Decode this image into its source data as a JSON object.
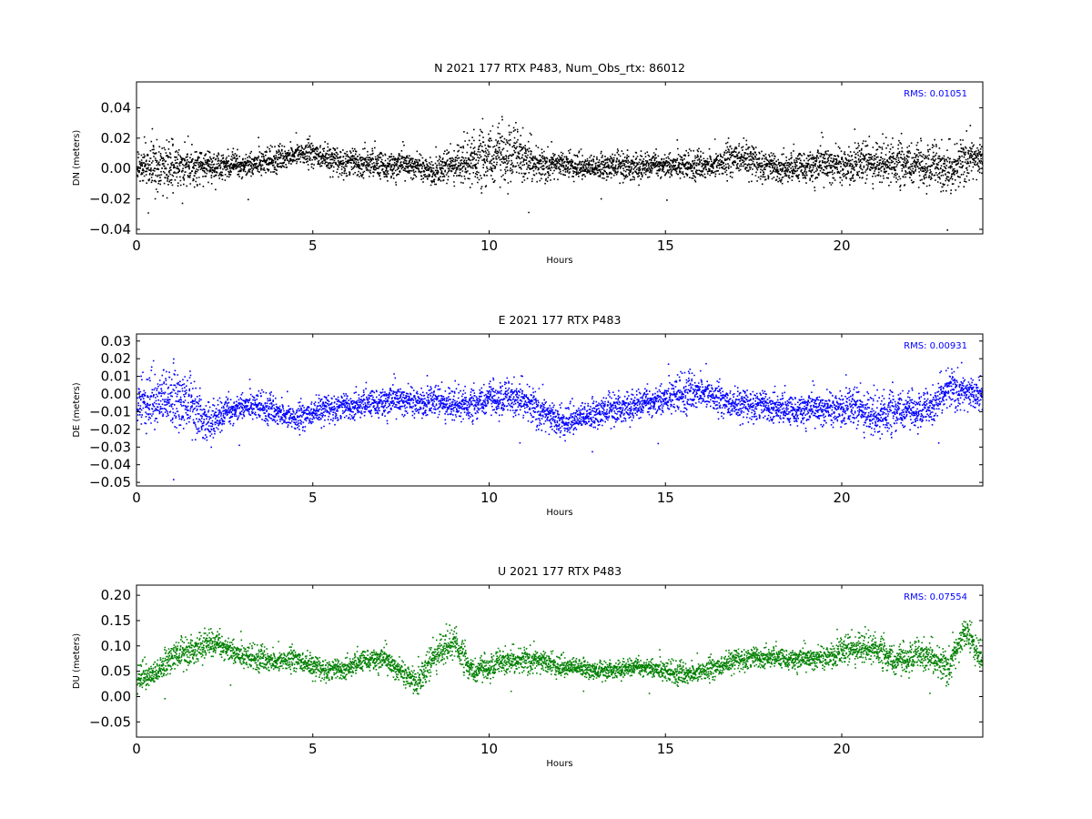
{
  "chart_data": [
    {
      "type": "scatter",
      "title": "N 2021 177 RTX  P483, Num_Obs_rtx: 86012",
      "xlabel": "Hours",
      "ylabel": "DN (meters)",
      "xlim": [
        0,
        24
      ],
      "ylim": [
        -0.043,
        0.057
      ],
      "xticks": [
        0,
        5,
        10,
        15,
        20
      ],
      "xtick_labels": [
        "0",
        "5",
        "10",
        "15",
        "20"
      ],
      "yticks": [
        -0.04,
        -0.02,
        0.0,
        0.02,
        0.04
      ],
      "ytick_labels": [
        "−0.04",
        "−0.02",
        "0.00",
        "0.02",
        "0.04"
      ],
      "annotation": "RMS:  0.01051",
      "color": "#000000",
      "annotation_color": "#0000ff",
      "grid": false,
      "series": [
        {
          "x": [
            0,
            0.5,
            1,
            1.5,
            2,
            2.5,
            3,
            3.5,
            4,
            4.5,
            5,
            5.5,
            6,
            6.5,
            7,
            7.5,
            8,
            8.5,
            9,
            9.5,
            10,
            10.5,
            11,
            11.5,
            12,
            12.5,
            13,
            13.5,
            14,
            14.5,
            15,
            15.5,
            16,
            16.5,
            17,
            17.5,
            18,
            18.5,
            19,
            19.5,
            20,
            20.5,
            21,
            21.5,
            22,
            22.5,
            23,
            23.5,
            24
          ],
          "y": [
            0.002,
            0.002,
            0.0,
            0.003,
            0.002,
            0.001,
            0.003,
            0.004,
            0.006,
            0.01,
            0.01,
            0.006,
            0.005,
            0.005,
            0.002,
            0.003,
            0.002,
            -0.002,
            0.004,
            0.006,
            0.008,
            0.01,
            0.006,
            0.003,
            0.003,
            0.002,
            0.001,
            0.002,
            0.002,
            0.003,
            0.003,
            0.002,
            0.002,
            0.003,
            0.008,
            0.005,
            0.002,
            0.001,
            0.002,
            0.003,
            0.003,
            0.004,
            0.005,
            0.004,
            0.003,
            0.002,
            -0.002,
            0.008,
            0.005
          ],
          "spread": [
            0.012,
            0.016,
            0.018,
            0.012,
            0.011,
            0.01,
            0.009,
            0.009,
            0.008,
            0.008,
            0.009,
            0.009,
            0.01,
            0.01,
            0.01,
            0.009,
            0.009,
            0.01,
            0.012,
            0.018,
            0.02,
            0.02,
            0.016,
            0.011,
            0.01,
            0.009,
            0.009,
            0.009,
            0.01,
            0.009,
            0.009,
            0.009,
            0.009,
            0.01,
            0.012,
            0.011,
            0.01,
            0.01,
            0.011,
            0.013,
            0.013,
            0.014,
            0.014,
            0.015,
            0.014,
            0.014,
            0.017,
            0.016,
            0.012
          ]
        }
      ]
    },
    {
      "type": "scatter",
      "title": "E 2021 177 RTX  P483",
      "xlabel": "Hours",
      "ylabel": "DE (meters)",
      "xlim": [
        0,
        24
      ],
      "ylim": [
        -0.052,
        0.034
      ],
      "xticks": [
        0,
        5,
        10,
        15,
        20
      ],
      "xtick_labels": [
        "0",
        "5",
        "10",
        "15",
        "20"
      ],
      "yticks": [
        -0.05,
        -0.04,
        -0.03,
        -0.02,
        -0.01,
        0.0,
        0.01,
        0.02,
        0.03
      ],
      "ytick_labels": [
        "−0.05",
        "−0.04",
        "−0.03",
        "−0.02",
        "−0.01",
        "0.00",
        "0.01",
        "0.02",
        "0.03"
      ],
      "annotation": "RMS:  0.00931",
      "color": "#0000ff",
      "annotation_color": "#0000ff",
      "grid": false,
      "series": [
        {
          "x": [
            0,
            0.5,
            1,
            1.5,
            2,
            2.5,
            3,
            3.5,
            4,
            4.5,
            5,
            5.5,
            6,
            6.5,
            7,
            7.5,
            8,
            8.5,
            9,
            9.5,
            10,
            10.5,
            11,
            11.5,
            12,
            12.5,
            13,
            13.5,
            14,
            14.5,
            15,
            15.5,
            16,
            16.5,
            17,
            17.5,
            18,
            18.5,
            19,
            19.5,
            20,
            20.5,
            21,
            21.5,
            22,
            22.5,
            23,
            23.5,
            24
          ],
          "y": [
            -0.005,
            -0.003,
            -0.002,
            -0.006,
            -0.015,
            -0.01,
            -0.006,
            -0.007,
            -0.01,
            -0.014,
            -0.01,
            -0.007,
            -0.006,
            -0.005,
            -0.004,
            -0.003,
            -0.004,
            -0.004,
            -0.005,
            -0.006,
            -0.002,
            -0.003,
            -0.003,
            -0.01,
            -0.016,
            -0.013,
            -0.011,
            -0.008,
            -0.006,
            -0.004,
            -0.002,
            0.0,
            0.002,
            -0.003,
            -0.006,
            -0.005,
            -0.006,
            -0.009,
            -0.008,
            -0.008,
            -0.007,
            -0.008,
            -0.012,
            -0.009,
            -0.009,
            -0.009,
            0.005,
            0.001,
            -0.001
          ],
          "spread": [
            0.014,
            0.018,
            0.02,
            0.016,
            0.012,
            0.01,
            0.008,
            0.008,
            0.008,
            0.008,
            0.008,
            0.008,
            0.008,
            0.008,
            0.009,
            0.009,
            0.009,
            0.009,
            0.01,
            0.009,
            0.009,
            0.01,
            0.011,
            0.011,
            0.01,
            0.009,
            0.009,
            0.009,
            0.009,
            0.009,
            0.01,
            0.011,
            0.01,
            0.009,
            0.009,
            0.009,
            0.009,
            0.009,
            0.009,
            0.01,
            0.011,
            0.012,
            0.013,
            0.012,
            0.01,
            0.01,
            0.012,
            0.011,
            0.01
          ]
        }
      ]
    },
    {
      "type": "scatter",
      "title": "U 2021 177 RTX  P483",
      "xlabel": "Hours",
      "ylabel": "DU (meters)",
      "xlim": [
        0,
        24
      ],
      "ylim": [
        -0.08,
        0.22
      ],
      "xticks": [
        0,
        5,
        10,
        15,
        20
      ],
      "xtick_labels": [
        "0",
        "5",
        "10",
        "15",
        "20"
      ],
      "yticks": [
        -0.05,
        0.0,
        0.05,
        0.1,
        0.15,
        0.2
      ],
      "ytick_labels": [
        "−0.05",
        "0.00",
        "0.05",
        "0.10",
        "0.15",
        "0.20"
      ],
      "annotation": "RMS:  0.07554",
      "color": "#008000",
      "annotation_color": "#0000ff",
      "grid": false,
      "series": [
        {
          "x": [
            0,
            0.5,
            1,
            1.5,
            2,
            2.5,
            3,
            3.5,
            4,
            4.5,
            5,
            5.5,
            6,
            6.5,
            7,
            7.5,
            8,
            8.5,
            9,
            9.5,
            10,
            10.5,
            11,
            11.5,
            12,
            12.5,
            13,
            13.5,
            14,
            14.5,
            15,
            15.5,
            16,
            16.5,
            17,
            17.5,
            18,
            18.5,
            19,
            19.5,
            20,
            20.5,
            21,
            21.5,
            22,
            22.5,
            23,
            23.5,
            24
          ],
          "y": [
            0.04,
            0.045,
            0.08,
            0.09,
            0.11,
            0.1,
            0.08,
            0.075,
            0.07,
            0.075,
            0.06,
            0.055,
            0.06,
            0.075,
            0.075,
            0.05,
            0.03,
            0.09,
            0.11,
            0.05,
            0.06,
            0.07,
            0.075,
            0.07,
            0.06,
            0.06,
            0.05,
            0.055,
            0.06,
            0.06,
            0.05,
            0.045,
            0.05,
            0.06,
            0.075,
            0.08,
            0.08,
            0.075,
            0.075,
            0.08,
            0.09,
            0.1,
            0.095,
            0.07,
            0.08,
            0.08,
            0.06,
            0.13,
            0.07
          ],
          "spread": [
            0.03,
            0.028,
            0.03,
            0.03,
            0.03,
            0.028,
            0.025,
            0.024,
            0.023,
            0.023,
            0.023,
            0.022,
            0.022,
            0.022,
            0.023,
            0.025,
            0.03,
            0.035,
            0.033,
            0.025,
            0.025,
            0.026,
            0.027,
            0.026,
            0.023,
            0.02,
            0.018,
            0.018,
            0.019,
            0.02,
            0.022,
            0.022,
            0.022,
            0.022,
            0.022,
            0.022,
            0.021,
            0.021,
            0.022,
            0.025,
            0.03,
            0.032,
            0.03,
            0.03,
            0.03,
            0.032,
            0.035,
            0.035,
            0.03
          ]
        }
      ]
    }
  ]
}
